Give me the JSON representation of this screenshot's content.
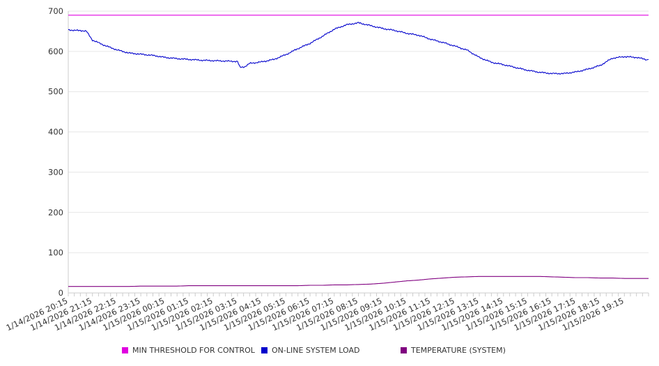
{
  "colors": {
    "min_threshold": "#e000e0",
    "online_load": "#0000cc",
    "temperature": "#800080",
    "grid": "#e6e6e6",
    "axis": "#cccccc"
  },
  "legend": [
    {
      "key": "min_threshold",
      "label": "MIN THRESHOLD FOR CONTROL"
    },
    {
      "key": "online_load",
      "label": "ON-LINE SYSTEM LOAD"
    },
    {
      "key": "temperature",
      "label": "TEMPERATURE (SYSTEM)"
    }
  ],
  "chart_data": {
    "type": "line",
    "title": "",
    "xlabel": "",
    "ylabel": "",
    "ylim": [
      0,
      700
    ],
    "yticks": [
      0,
      100,
      200,
      300,
      400,
      500,
      600,
      700
    ],
    "grid": true,
    "legend_position": "bottom",
    "x_tick_labels": [
      "1/14/2026 20:15",
      "1/14/2026 21:15",
      "1/14/2026 22:15",
      "1/14/2026 23:15",
      "1/15/2026 00:15",
      "1/15/2026 01:15",
      "1/15/2026 02:15",
      "1/15/2026 03:15",
      "1/15/2026 04:15",
      "1/15/2026 05:15",
      "1/15/2026 06:15",
      "1/15/2026 07:15",
      "1/15/2026 08:15",
      "1/15/2026 09:15",
      "1/15/2026 10:15",
      "1/15/2026 11:15",
      "1/15/2026 12:15",
      "1/15/2026 13:15",
      "1/15/2026 14:15",
      "1/15/2026 15:15",
      "1/15/2026 16:15",
      "1/15/2026 17:15",
      "1/15/2026 18:15",
      "1/15/2026 19:15"
    ],
    "x_hours": [
      0,
      0.25,
      0.5,
      0.75,
      1,
      1.5,
      2,
      2.5,
      3,
      3.5,
      4,
      4.5,
      5,
      5.5,
      6,
      6.5,
      7,
      7.1,
      7.3,
      7.5,
      8,
      8.5,
      9,
      9.5,
      10,
      10.5,
      11,
      11.5,
      12,
      12.5,
      13,
      13.5,
      14,
      14.5,
      15,
      15.5,
      16,
      16.5,
      17,
      17.5,
      18,
      18.5,
      19,
      19.5,
      20,
      20.5,
      21,
      21.5,
      22,
      22.5,
      23,
      23.5,
      23.9
    ],
    "series": [
      {
        "name": "MIN THRESHOLD FOR CONTROL",
        "key": "min_threshold",
        "values": [
          690,
          690,
          690,
          690,
          690,
          690,
          690,
          690,
          690,
          690,
          690,
          690,
          690,
          690,
          690,
          690,
          690,
          690,
          690,
          690,
          690,
          690,
          690,
          690,
          690,
          690,
          690,
          690,
          690,
          690,
          690,
          690,
          690,
          690,
          690,
          690,
          690,
          690,
          690,
          690,
          690,
          690,
          690,
          690,
          690,
          690,
          690,
          690,
          690,
          690,
          690,
          690,
          690
        ]
      },
      {
        "name": "ON-LINE SYSTEM LOAD",
        "key": "online_load",
        "values": [
          654,
          652,
          652,
          650,
          628,
          615,
          604,
          596,
          593,
          590,
          585,
          582,
          580,
          578,
          577,
          576,
          575,
          560,
          562,
          570,
          574,
          580,
          592,
          607,
          620,
          637,
          655,
          666,
          671,
          664,
          657,
          652,
          645,
          640,
          630,
          622,
          613,
          603,
          585,
          573,
          567,
          560,
          553,
          548,
          545,
          545,
          549,
          556,
          565,
          583,
          587,
          585,
          580
        ]
      },
      {
        "name": "TEMPERATURE (SYSTEM)",
        "key": "temperature",
        "values": [
          16,
          16,
          16,
          16,
          16,
          16,
          16,
          16,
          17,
          17,
          17,
          17,
          18,
          18,
          18,
          18,
          18,
          18,
          18,
          18,
          18,
          18,
          18,
          18,
          19,
          19,
          20,
          20,
          21,
          22,
          24,
          27,
          30,
          32,
          35,
          37,
          39,
          40,
          41,
          41,
          41,
          41,
          41,
          41,
          40,
          39,
          38,
          38,
          37,
          37,
          36,
          36,
          36
        ]
      }
    ]
  }
}
